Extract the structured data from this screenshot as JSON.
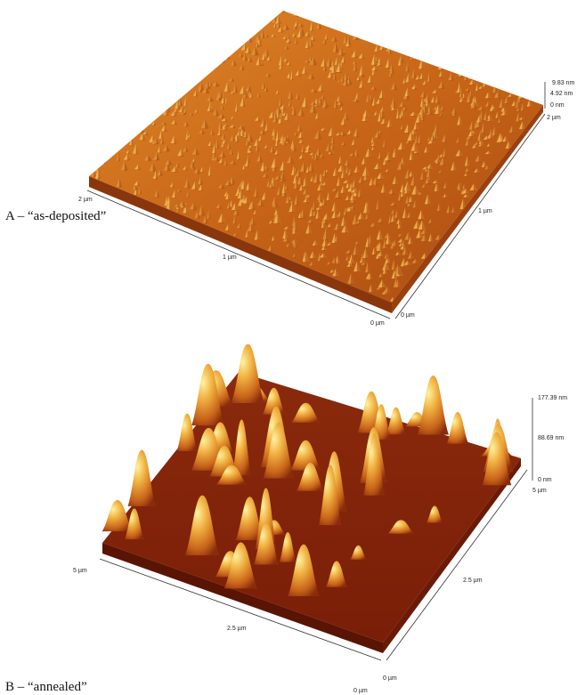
{
  "panels": [
    {
      "label": "A – “as-deposited”",
      "z_labels": [
        "9.83 nm",
        "4.92 nm",
        "0 nm"
      ],
      "left_axis_labels": [
        "2 µm",
        "1 µm",
        "0 µm"
      ],
      "right_axis_labels": [
        "2 µm",
        "1 µm",
        "0 µm"
      ]
    },
    {
      "label": "B – “annealed”",
      "z_labels": [
        "177.39 nm",
        "88.69 nm",
        "0 nm"
      ],
      "left_axis_labels": [
        "5 µm",
        "2.5 µm",
        "0 µm"
      ],
      "right_axis_labels": [
        "5 µm",
        "2.5 µm",
        "0 µm"
      ]
    }
  ]
}
